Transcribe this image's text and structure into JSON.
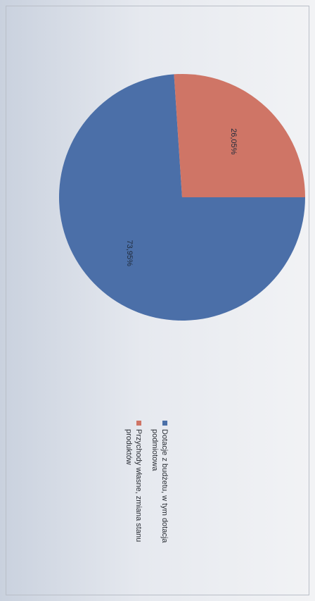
{
  "chart_data": {
    "type": "pie",
    "title": "",
    "slices": [
      {
        "label": "Dotacje z budżetu, w tym dotacja podmiotowa",
        "value": 73.95,
        "data_label": "73,95%",
        "color": "#4b6fa8"
      },
      {
        "label": "Przychody własne, zmiana stanu produktów",
        "value": 26.05,
        "data_label": "26,05%",
        "color": "#cf7566"
      }
    ],
    "legend": {
      "position": "right",
      "items": [
        {
          "line1": "Dotacje z budżetu, w tym dotacja",
          "line2": "podmiotowa",
          "color": "#4b6fa8"
        },
        {
          "line1": "Przychody własne, zmiana stanu",
          "line2": "produktów",
          "color": "#cf7566"
        }
      ]
    }
  }
}
